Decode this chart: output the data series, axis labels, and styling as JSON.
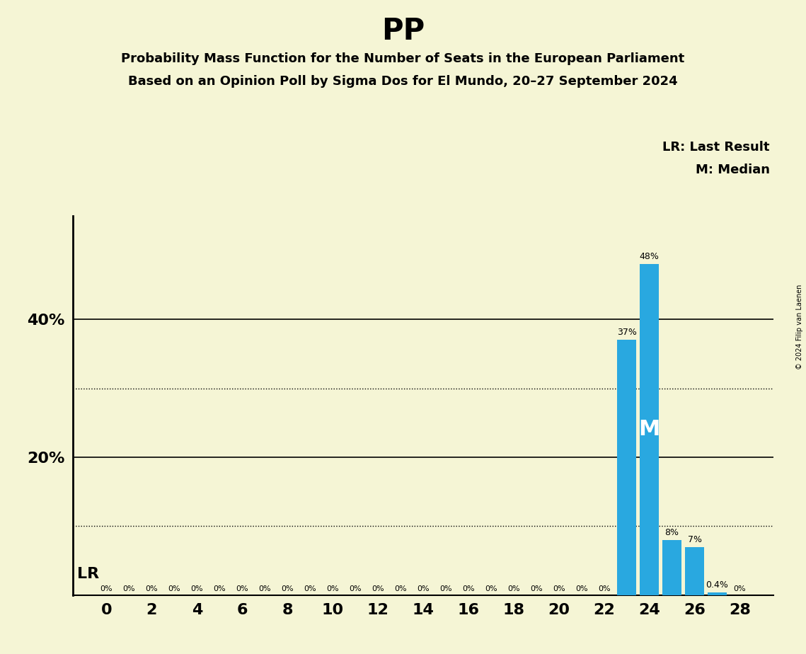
{
  "title": "PP",
  "subtitle1": "Probability Mass Function for the Number of Seats in the European Parliament",
  "subtitle2": "Based on an Opinion Poll by Sigma Dos for El Mundo, 20–27 September 2024",
  "copyright": "© 2024 Filip van Laenen",
  "seats": [
    0,
    1,
    2,
    3,
    4,
    5,
    6,
    7,
    8,
    9,
    10,
    11,
    12,
    13,
    14,
    15,
    16,
    17,
    18,
    19,
    20,
    21,
    22,
    23,
    24,
    25,
    26,
    27,
    28
  ],
  "probabilities": [
    0,
    0,
    0,
    0,
    0,
    0,
    0,
    0,
    0,
    0,
    0,
    0,
    0,
    0,
    0,
    0,
    0,
    0,
    0,
    0,
    0,
    0,
    0,
    37,
    48,
    8,
    7,
    0.4,
    0
  ],
  "bar_color": "#29a8e0",
  "background_color": "#f5f5d5",
  "last_result_seat": 23,
  "median_seat": 24,
  "ylim_max": 55,
  "dotted_lines": [
    10,
    30
  ],
  "solid_lines": [
    20,
    40
  ],
  "xlabel_seats": [
    0,
    2,
    4,
    6,
    8,
    10,
    12,
    14,
    16,
    18,
    20,
    22,
    24,
    26,
    28
  ]
}
